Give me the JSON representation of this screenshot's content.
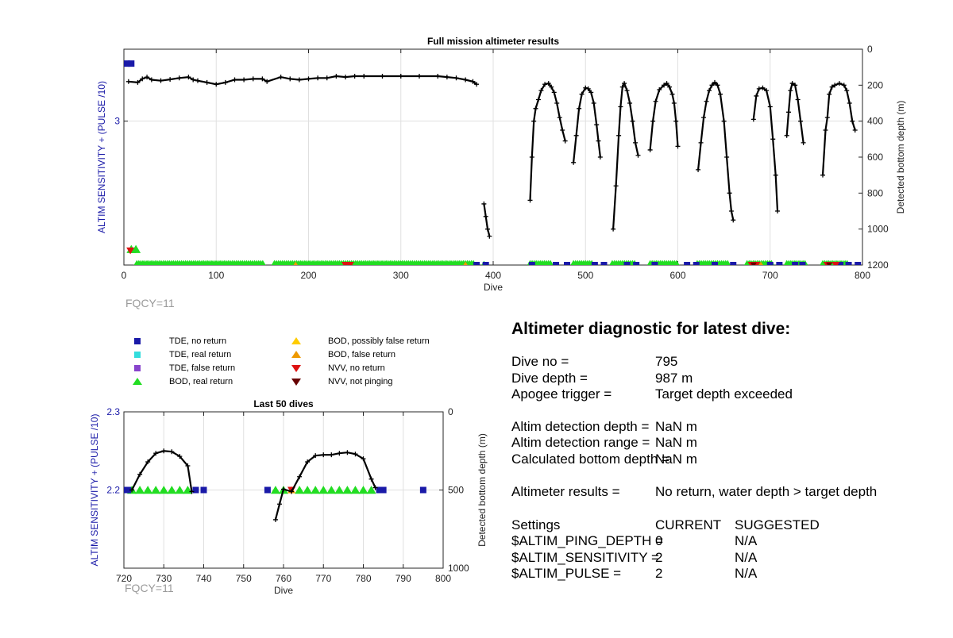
{
  "colors": {
    "tde_no_return": "#1a1aa8",
    "tde_real_return": "#33dddd",
    "tde_false_return": "#8844cc",
    "bod_real_return": "#22dd22",
    "bod_possibly_false": "#ffcc00",
    "bod_false": "#ee9900",
    "nvv_no_return": "#dd1111",
    "nvv_not_pinging": "#660000",
    "left_axis": "#1a1aa8",
    "grid": "#e0e0e0",
    "depth_line": "#000000"
  },
  "chart_data": [
    {
      "type": "scatter",
      "title": "Full mission altimeter results",
      "xlabel": "Dive",
      "ylabel_left": "ALTIM SENSITIVITY + (PULSE /10)",
      "ylabel_right": "Detected bottom depth (m)",
      "xlim": [
        0,
        800
      ],
      "xticks": [
        0,
        100,
        200,
        300,
        400,
        500,
        600,
        700,
        800
      ],
      "ylim_left": [
        2,
        3.5
      ],
      "yticks_left": [
        3
      ],
      "ylim_right": [
        1200,
        0
      ],
      "yticks_right": [
        0,
        200,
        400,
        600,
        800,
        1000,
        1200
      ],
      "grid": true,
      "annotation": "FQCY=11",
      "depth_segments": [
        [
          [
            5,
            180
          ],
          [
            15,
            185
          ],
          [
            20,
            165
          ],
          [
            25,
            155
          ],
          [
            30,
            170
          ],
          [
            40,
            175
          ],
          [
            50,
            168
          ],
          [
            60,
            160
          ],
          [
            70,
            155
          ],
          [
            75,
            170
          ],
          [
            80,
            175
          ],
          [
            90,
            185
          ],
          [
            100,
            195
          ],
          [
            110,
            185
          ],
          [
            120,
            170
          ],
          [
            130,
            170
          ],
          [
            140,
            165
          ],
          [
            150,
            165
          ],
          [
            155,
            180
          ],
          [
            170,
            155
          ],
          [
            180,
            165
          ],
          [
            190,
            170
          ],
          [
            200,
            165
          ],
          [
            210,
            160
          ],
          [
            220,
            160
          ],
          [
            230,
            150
          ],
          [
            240,
            155
          ],
          [
            250,
            150
          ],
          [
            260,
            150
          ],
          [
            280,
            150
          ],
          [
            300,
            150
          ],
          [
            320,
            150
          ],
          [
            340,
            150
          ],
          [
            350,
            155
          ],
          [
            360,
            160
          ],
          [
            370,
            170
          ],
          [
            378,
            180
          ],
          [
            382,
            195
          ]
        ],
        [
          [
            390,
            860
          ],
          [
            392,
            930
          ],
          [
            394,
            1000
          ],
          [
            396,
            1040
          ]
        ],
        [
          [
            440,
            840
          ],
          [
            442,
            600
          ],
          [
            444,
            400
          ],
          [
            446,
            330
          ],
          [
            449,
            280
          ],
          [
            452,
            230
          ],
          [
            456,
            195
          ],
          [
            460,
            190
          ],
          [
            463,
            210
          ],
          [
            466,
            240
          ],
          [
            469,
            300
          ],
          [
            472,
            380
          ],
          [
            475,
            450
          ],
          [
            478,
            510
          ]
        ],
        [
          [
            487,
            630
          ],
          [
            490,
            480
          ],
          [
            493,
            330
          ],
          [
            496,
            250
          ],
          [
            500,
            215
          ],
          [
            503,
            220
          ],
          [
            506,
            240
          ],
          [
            509,
            300
          ],
          [
            512,
            420
          ],
          [
            514,
            510
          ],
          [
            516,
            600
          ]
        ],
        [
          [
            530,
            1000
          ],
          [
            533,
            760
          ],
          [
            536,
            480
          ],
          [
            538,
            320
          ],
          [
            540,
            210
          ],
          [
            542,
            190
          ],
          [
            545,
            230
          ],
          [
            548,
            300
          ],
          [
            551,
            400
          ],
          [
            554,
            520
          ],
          [
            557,
            590
          ]
        ],
        [
          [
            570,
            560
          ],
          [
            573,
            400
          ],
          [
            576,
            290
          ],
          [
            580,
            225
          ],
          [
            585,
            200
          ],
          [
            588,
            190
          ],
          [
            591,
            210
          ],
          [
            594,
            250
          ],
          [
            596,
            300
          ],
          [
            598,
            400
          ],
          [
            600,
            540
          ]
        ],
        [
          [
            622,
            670
          ],
          [
            625,
            520
          ],
          [
            628,
            380
          ],
          [
            631,
            290
          ],
          [
            634,
            230
          ],
          [
            637,
            200
          ],
          [
            640,
            185
          ],
          [
            643,
            200
          ],
          [
            646,
            250
          ],
          [
            650,
            400
          ],
          [
            653,
            600
          ],
          [
            656,
            800
          ],
          [
            658,
            900
          ],
          [
            660,
            950
          ]
        ],
        [
          [
            682,
            390
          ],
          [
            685,
            260
          ],
          [
            688,
            220
          ],
          [
            692,
            215
          ],
          [
            696,
            230
          ],
          [
            700,
            320
          ],
          [
            703,
            500
          ],
          [
            706,
            700
          ],
          [
            708,
            900
          ]
        ],
        [
          [
            718,
            480
          ],
          [
            720,
            350
          ],
          [
            722,
            230
          ],
          [
            724,
            190
          ],
          [
            727,
            200
          ],
          [
            730,
            280
          ],
          [
            733,
            400
          ],
          [
            736,
            520
          ]
        ],
        [
          [
            757,
            700
          ],
          [
            760,
            450
          ],
          [
            762,
            380
          ],
          [
            764,
            250
          ],
          [
            767,
            210
          ],
          [
            770,
            200
          ],
          [
            775,
            190
          ],
          [
            780,
            200
          ],
          [
            783,
            230
          ],
          [
            786,
            300
          ],
          [
            789,
            400
          ],
          [
            792,
            450
          ]
        ]
      ],
      "tde_no_return_markers": [
        [
          3,
          3.4
        ],
        [
          8,
          3.4
        ],
        [
          382,
          2.0
        ],
        [
          392,
          2.0
        ],
        [
          442,
          2.0
        ],
        [
          468,
          2.0
        ],
        [
          480,
          2.0
        ],
        [
          510,
          2.0
        ],
        [
          520,
          2.0
        ],
        [
          545,
          2.0
        ],
        [
          555,
          2.0
        ],
        [
          575,
          2.0
        ],
        [
          610,
          2.0
        ],
        [
          620,
          2.0
        ],
        [
          640,
          2.0
        ],
        [
          660,
          2.0
        ],
        [
          700,
          2.0
        ],
        [
          710,
          2.0
        ],
        [
          727,
          2.0
        ],
        [
          735,
          2.0
        ],
        [
          776,
          2.0
        ],
        [
          785,
          2.0
        ],
        [
          795,
          2.0
        ]
      ],
      "bod_real_return_spans": [
        [
          14,
          152
        ],
        [
          163,
          380
        ],
        [
          440,
          462
        ],
        [
          487,
          508
        ],
        [
          529,
          555
        ],
        [
          570,
          600
        ],
        [
          621,
          655
        ],
        [
          675,
          702
        ],
        [
          718,
          740
        ],
        [
          757,
          784
        ]
      ],
      "bod_real_return_markers": [
        [
          8,
          2.11
        ],
        [
          13,
          2.11
        ],
        [
          390,
          2.0
        ]
      ],
      "nvv_no_return_markers": [
        [
          7,
          2.1
        ],
        [
          240,
          2.0
        ],
        [
          245,
          2.0
        ],
        [
          680,
          2.0
        ],
        [
          685,
          2.0
        ],
        [
          762,
          2.0
        ],
        [
          771,
          2.0
        ]
      ],
      "nvv_not_pinging_markers": [
        [
          682,
          2.0
        ],
        [
          764,
          2.0
        ]
      ],
      "bod_false_markers": [
        [
          186,
          2.0
        ],
        [
          370,
          2.0
        ],
        [
          690,
          2.0
        ],
        [
          735,
          2.0
        ],
        [
          775,
          2.0
        ]
      ]
    },
    {
      "type": "scatter",
      "title": "Last 50 dives",
      "xlabel": "Dive",
      "ylabel_left": "ALTIM SENSITIVITY + (PULSE /10)",
      "ylabel_right": "Detected bottom depth (m)",
      "xlim": [
        720,
        800
      ],
      "xticks": [
        720,
        730,
        740,
        750,
        760,
        770,
        780,
        790,
        800
      ],
      "ylim_left": [
        2.1,
        2.3
      ],
      "yticks_left": [
        2.2,
        2.3
      ],
      "ylim_right": [
        1000,
        0
      ],
      "yticks_right": [
        0,
        500,
        1000
      ],
      "grid": true,
      "annotation": "FQCY=11",
      "depth_segments": [
        [
          [
            722,
            500
          ],
          [
            724,
            400
          ],
          [
            726,
            320
          ],
          [
            728,
            265
          ],
          [
            730,
            250
          ],
          [
            732,
            255
          ],
          [
            734,
            285
          ],
          [
            736,
            345
          ],
          [
            737,
            510
          ]
        ],
        [
          [
            758,
            690
          ],
          [
            759,
            590
          ],
          [
            760,
            495
          ],
          [
            762,
            510
          ],
          [
            764,
            415
          ],
          [
            766,
            320
          ],
          [
            768,
            280
          ],
          [
            770,
            275
          ],
          [
            772,
            275
          ],
          [
            774,
            265
          ],
          [
            776,
            260
          ],
          [
            778,
            270
          ],
          [
            780,
            300
          ],
          [
            782,
            430
          ],
          [
            783,
            485
          ]
        ]
      ],
      "tde_no_return_markers": [
        [
          720,
          2.2
        ],
        [
          721,
          2.2
        ],
        [
          738,
          2.2
        ],
        [
          740,
          2.2
        ],
        [
          756,
          2.2
        ],
        [
          784,
          2.2
        ],
        [
          785,
          2.2
        ],
        [
          795,
          2.2
        ]
      ],
      "bod_real_return_markers": [
        [
          722,
          2.2
        ],
        [
          724,
          2.2
        ],
        [
          726,
          2.2
        ],
        [
          728,
          2.2
        ],
        [
          730,
          2.2
        ],
        [
          732,
          2.2
        ],
        [
          734,
          2.2
        ],
        [
          736,
          2.2
        ],
        [
          758,
          2.2
        ],
        [
          760,
          2.2
        ],
        [
          764,
          2.2
        ],
        [
          766,
          2.2
        ],
        [
          768,
          2.2
        ],
        [
          770,
          2.2
        ],
        [
          772,
          2.2
        ],
        [
          774,
          2.2
        ],
        [
          776,
          2.2
        ],
        [
          778,
          2.2
        ],
        [
          780,
          2.2
        ],
        [
          782,
          2.2
        ]
      ],
      "bod_false_markers": [
        [
          762,
          2.2
        ]
      ],
      "nvv_no_return_markers": [
        [
          762,
          2.2
        ]
      ]
    }
  ],
  "legend": {
    "items": [
      {
        "label": "TDE, no return",
        "marker": "square",
        "color_key": "tde_no_return"
      },
      {
        "label": "TDE, real return",
        "marker": "square",
        "color_key": "tde_real_return"
      },
      {
        "label": "TDE, false return",
        "marker": "square",
        "color_key": "tde_false_return"
      },
      {
        "label": "BOD, real return",
        "marker": "triangle-up",
        "color_key": "bod_real_return"
      },
      {
        "label": "BOD, possibly false return",
        "marker": "triangle-up",
        "color_key": "bod_possibly_false"
      },
      {
        "label": "BOD, false return",
        "marker": "triangle-up",
        "color_key": "bod_false"
      },
      {
        "label": "NVV, no return",
        "marker": "triangle-down",
        "color_key": "nvv_no_return"
      },
      {
        "label": "NVV, not pinging",
        "marker": "triangle-down",
        "color_key": "nvv_not_pinging"
      }
    ]
  },
  "diagnostic": {
    "title": "Altimeter diagnostic for latest dive:",
    "dive_no_label": "Dive no =",
    "dive_no_value": "795",
    "dive_depth_label": "Dive depth =",
    "dive_depth_value": "987 m",
    "apogee_label": "Apogee trigger =",
    "apogee_value": "Target depth exceeded",
    "detection_depth_label": "Altim detection depth =",
    "detection_depth_value": "NaN m",
    "detection_range_label": "Altim detection range =",
    "detection_range_value": "NaN m",
    "bottom_depth_label": "Calculated bottom depth =",
    "bottom_depth_value": "NaN m",
    "results_label": "Altimeter results =",
    "results_value": "No return, water depth > target depth",
    "settings_header": "Settings",
    "current_header": "CURRENT",
    "suggested_header": "SUGGESTED",
    "ping_depth_label": "$ALTIM_PING_DEPTH =",
    "ping_depth_current": "0",
    "ping_depth_suggested": "N/A",
    "sensitivity_label": "$ALTIM_SENSITIVITY =",
    "sensitivity_current": "2",
    "sensitivity_suggested": "N/A",
    "pulse_label": "$ALTIM_PULSE =",
    "pulse_current": "2",
    "pulse_suggested": "N/A"
  }
}
